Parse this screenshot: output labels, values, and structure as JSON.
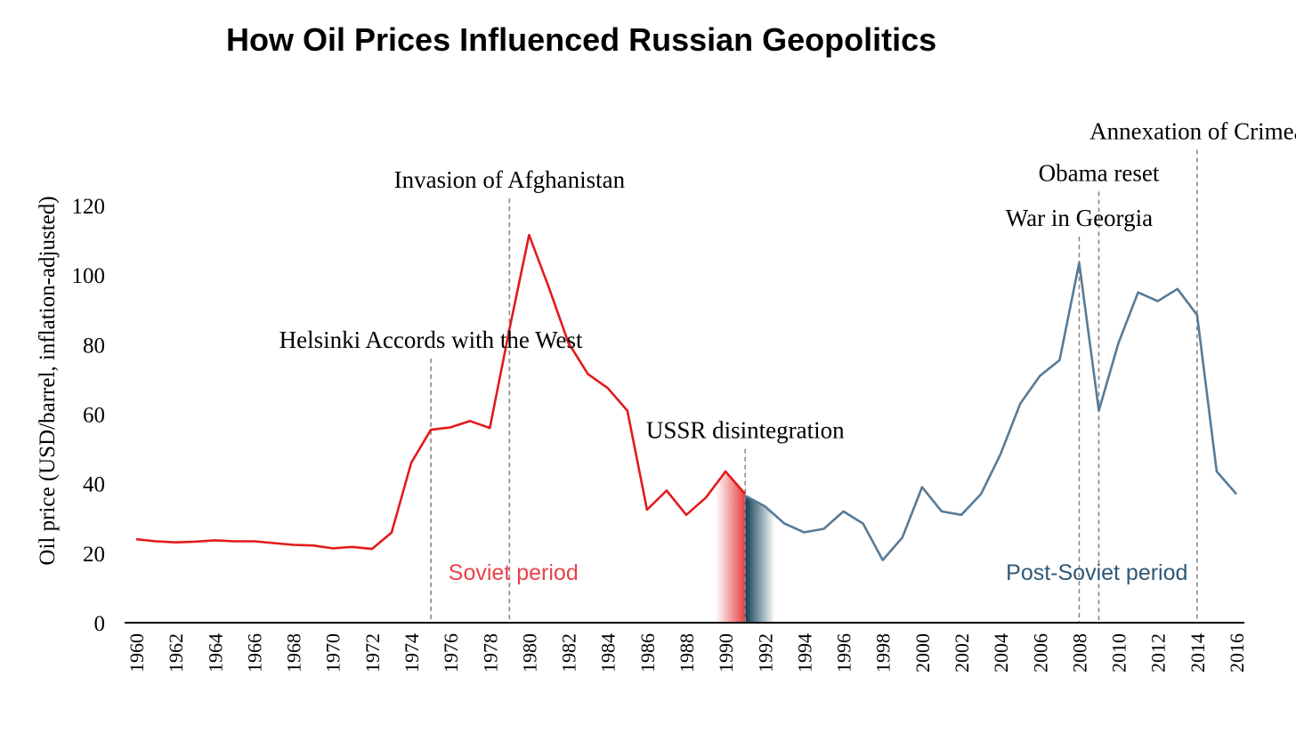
{
  "chart_data": {
    "type": "line",
    "title": "How Oil Prices Influenced Russian Geopolitics",
    "xlabel": "",
    "ylabel": "Oil price (USD/barrel, inflation-adjusted)",
    "xlim": [
      1960,
      2016
    ],
    "ylim": [
      0,
      120
    ],
    "yticks": [
      0,
      20,
      40,
      60,
      80,
      100,
      120
    ],
    "xticks": [
      1960,
      1962,
      1964,
      1966,
      1968,
      1970,
      1972,
      1974,
      1976,
      1978,
      1980,
      1982,
      1984,
      1986,
      1988,
      1990,
      1992,
      1994,
      1996,
      1998,
      2000,
      2002,
      2004,
      2006,
      2008,
      2010,
      2012,
      2014,
      2016
    ],
    "grid": false,
    "series": [
      {
        "name": "Soviet period",
        "color": "#e31a1c",
        "x": [
          1960,
          1961,
          1962,
          1963,
          1964,
          1965,
          1966,
          1967,
          1968,
          1969,
          1970,
          1971,
          1972,
          1973,
          1974,
          1975,
          1976,
          1977,
          1978,
          1979,
          1980,
          1981,
          1982,
          1983,
          1984,
          1985,
          1986,
          1987,
          1988,
          1989,
          1990,
          1991
        ],
        "values": [
          24.0,
          23.4,
          23.1,
          23.3,
          23.7,
          23.4,
          23.4,
          22.9,
          22.4,
          22.2,
          21.4,
          21.8,
          21.2,
          25.9,
          46.0,
          55.5,
          56.2,
          58.0,
          56.0,
          84.5,
          111.5,
          96.5,
          80.5,
          71.5,
          67.5,
          61.0,
          32.5,
          38.0,
          31.0,
          36.0,
          43.5,
          37.0
        ]
      },
      {
        "name": "Post-Soviet period",
        "color": "#557b99",
        "x": [
          1991,
          1992,
          1993,
          1994,
          1995,
          1996,
          1997,
          1998,
          1999,
          2000,
          2001,
          2002,
          2003,
          2004,
          2005,
          2006,
          2007,
          2008,
          2009,
          2010,
          2011,
          2012,
          2013,
          2014,
          2015,
          2016
        ],
        "values": [
          36.5,
          33.5,
          28.5,
          26.0,
          27.0,
          32.0,
          28.5,
          18.0,
          24.5,
          39.0,
          32.0,
          31.0,
          37.0,
          48.5,
          63.0,
          71.0,
          75.5,
          103.5,
          61.0,
          80.5,
          95.0,
          92.5,
          96.0,
          88.5,
          43.5,
          37.0
        ]
      }
    ],
    "annotations": [
      {
        "year": 1975,
        "label": "Helsinki Accords with the West",
        "top": 76
      },
      {
        "year": 1979,
        "label": "Invasion of Afghanistan",
        "top": 122
      },
      {
        "year": 1991,
        "label": "USSR disintegration",
        "top": 50
      },
      {
        "year": 2008,
        "label": "War in Georgia",
        "top": 111
      },
      {
        "year": 2009,
        "label": "Obama reset",
        "top": 124
      },
      {
        "year": 2014,
        "label": "Annexation of Crimea",
        "top": 136
      }
    ],
    "period_labels": [
      {
        "text": "Soviet period",
        "color": "#e8434a"
      },
      {
        "text": "Post-Soviet period",
        "color": "#2f5878"
      }
    ],
    "colors": {
      "soviet": "#e31a1c",
      "post_soviet": "#557b99",
      "annotation_line": "#888888"
    }
  }
}
